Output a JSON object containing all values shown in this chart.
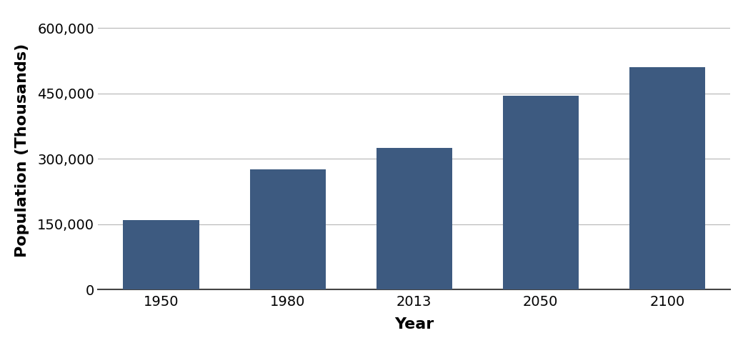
{
  "categories": [
    "1950",
    "1980",
    "2013",
    "2050",
    "2100"
  ],
  "values": [
    160000,
    275000,
    325000,
    445000,
    510000
  ],
  "bar_color": "#3D5A80",
  "xlabel": "Year",
  "ylabel": "Population (Thousands)",
  "ylim": [
    0,
    640000
  ],
  "yticks": [
    0,
    150000,
    300000,
    450000,
    600000
  ],
  "ytick_labels": [
    "0",
    "150,000",
    "300,000",
    "450,000",
    "600,000"
  ],
  "background_color": "#ffffff",
  "grid_color": "#bbbbbb",
  "bar_width": 0.6,
  "xlabel_fontsize": 16,
  "ylabel_fontsize": 16,
  "tick_fontsize": 14
}
